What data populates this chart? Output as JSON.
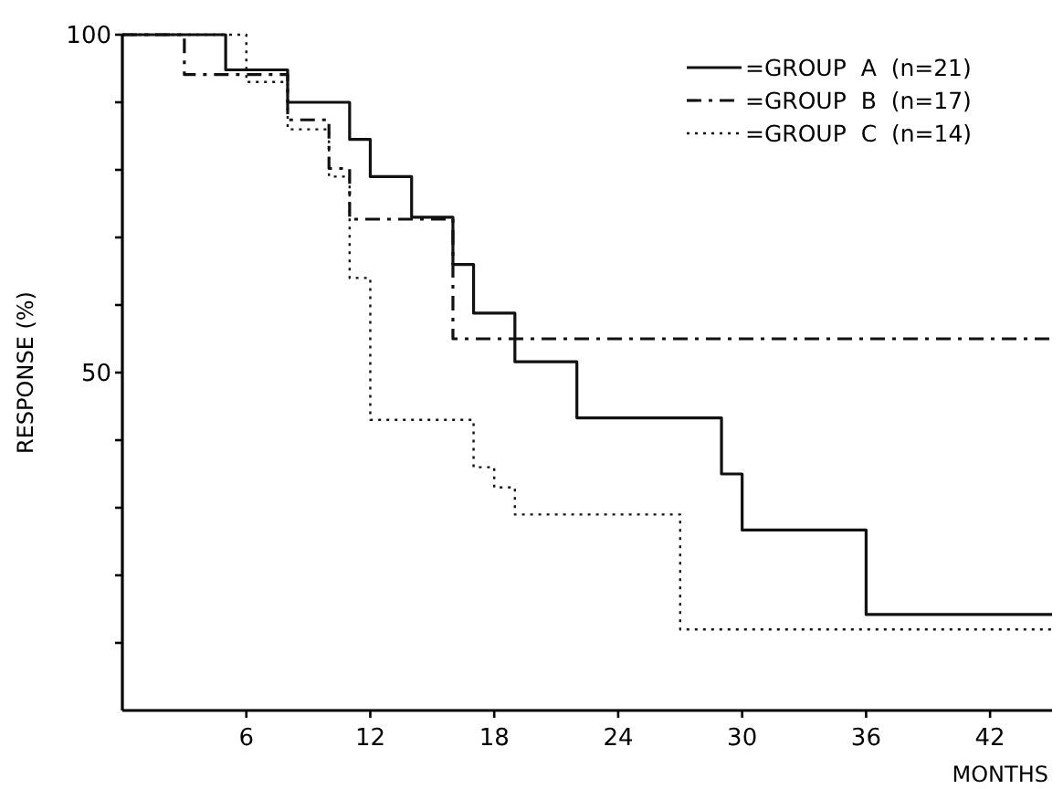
{
  "chart_data": {
    "type": "step",
    "xlabel": "MONTHS",
    "ylabel": "RESPONSE (%)",
    "xlim": [
      0,
      45
    ],
    "ylim": [
      0,
      100
    ],
    "xticks": [
      6,
      12,
      18,
      24,
      30,
      36,
      42
    ],
    "yticks": [
      {
        "value": 10,
        "label": null
      },
      {
        "value": 20,
        "label": null
      },
      {
        "value": 30,
        "label": null
      },
      {
        "value": 40,
        "label": null
      },
      50,
      {
        "value": 60,
        "label": null
      },
      {
        "value": 70,
        "label": null
      },
      {
        "value": 80,
        "label": null
      },
      {
        "value": 90,
        "label": null
      },
      100
    ],
    "grid": false,
    "legend": "top right",
    "series": [
      {
        "name": "=GROUP  A  (n=21)",
        "color": "#111111",
        "line_style": "solid",
        "x": [
          0,
          5,
          8,
          11,
          12,
          14,
          16,
          17,
          19,
          22,
          29,
          30,
          36,
          45
        ],
        "values": [
          100,
          94.8,
          90,
          84.5,
          79,
          73,
          66,
          58.8,
          51.6,
          43.3,
          35,
          26.7,
          14.2,
          14.2
        ]
      },
      {
        "name": "=GROUP  B  (n=17)",
        "color": "#111111",
        "line_style": "dashdot",
        "x": [
          0,
          3,
          8,
          10,
          11,
          16,
          45
        ],
        "values": [
          100,
          94.1,
          87.4,
          80.2,
          72.7,
          55,
          55
        ]
      },
      {
        "name": "=GROUP  C  (n=14)",
        "color": "#111111",
        "line_style": "dotted",
        "x": [
          0,
          6,
          8,
          10,
          11,
          12,
          17,
          18,
          19,
          27,
          45
        ],
        "values": [
          100,
          93,
          86,
          79,
          64,
          43,
          36,
          33,
          29,
          12,
          12
        ]
      }
    ]
  }
}
